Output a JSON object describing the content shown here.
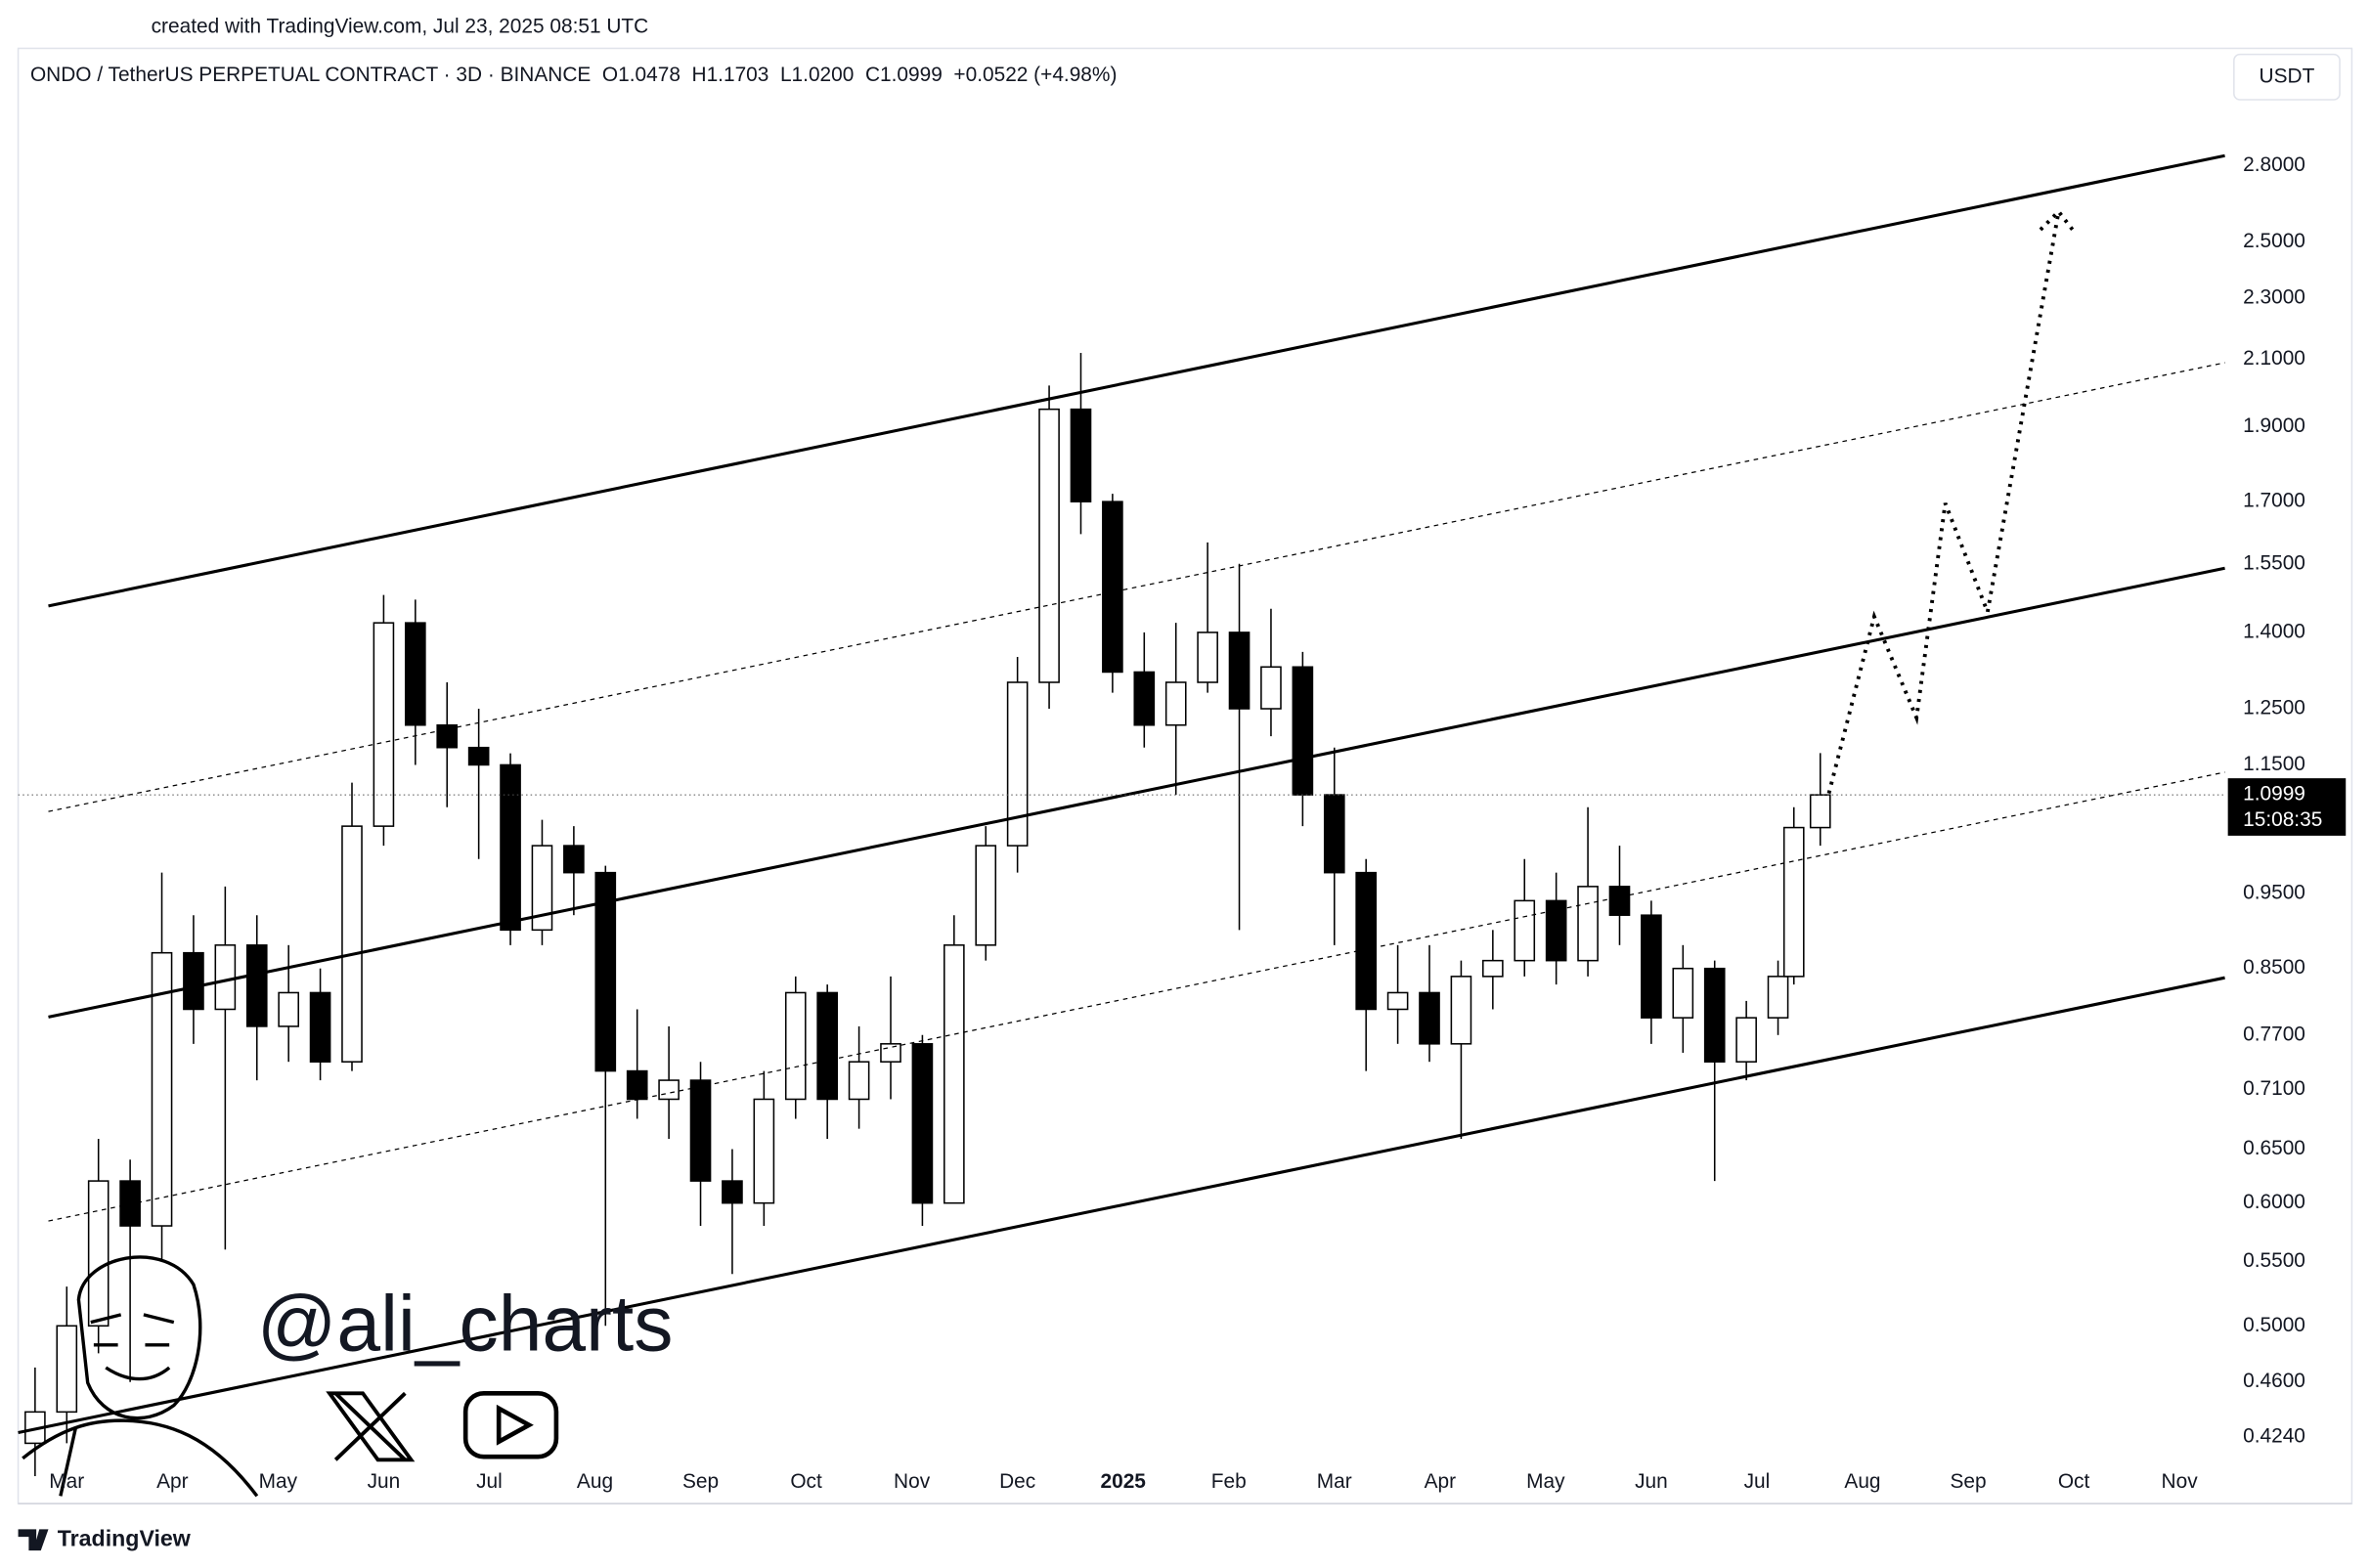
{
  "page": {
    "created": "created with TradingView.com, Jul 23, 2025 08:51 UTC",
    "currency": "USDT",
    "watermark": "@ali_charts",
    "brand": "TradingView"
  },
  "chart_data": {
    "type": "candlestick",
    "title": "ONDO / TetherUS PERPETUAL CONTRACT · 3D · BINANCE  O1.0478  H1.1703  L1.0200  C1.0999  +0.0522 (+4.98%)",
    "x": [
      -0.3,
      0,
      0.3,
      0.6,
      0.9,
      1.2,
      1.5,
      1.8,
      2.1,
      2.4,
      2.7,
      3.0,
      3.3,
      3.6,
      3.9,
      4.2,
      4.5,
      4.8,
      5.1,
      5.4,
      5.7,
      6.0,
      6.3,
      6.6,
      6.9,
      7.2,
      7.5,
      7.8,
      8.1,
      8.4,
      8.7,
      9.0,
      9.3,
      9.6,
      9.9,
      10.2,
      10.5,
      10.8,
      11.1,
      11.4,
      11.7,
      12.0,
      12.3,
      12.6,
      12.9,
      13.2,
      13.5,
      13.8,
      14.1,
      14.4,
      14.7,
      15.0,
      15.3,
      15.6,
      15.9,
      16.2,
      16.35,
      16.6
    ],
    "open": [
      0.42,
      0.44,
      0.5,
      0.62,
      0.58,
      0.87,
      0.8,
      0.88,
      0.78,
      0.82,
      0.74,
      1.05,
      1.42,
      1.22,
      1.18,
      1.15,
      0.9,
      1.02,
      0.98,
      0.73,
      0.7,
      0.72,
      0.62,
      0.6,
      0.7,
      0.82,
      0.7,
      0.74,
      0.76,
      0.6,
      0.88,
      1.02,
      1.3,
      1.95,
      1.7,
      1.32,
      1.22,
      1.3,
      1.4,
      1.25,
      1.33,
      1.1,
      0.98,
      0.8,
      0.82,
      0.76,
      0.84,
      0.86,
      0.94,
      0.86,
      0.96,
      0.92,
      0.79,
      0.85,
      0.74,
      0.79,
      0.84,
      1.0478
    ],
    "high": [
      0.47,
      0.53,
      0.66,
      0.64,
      0.98,
      0.92,
      0.96,
      0.92,
      0.88,
      0.85,
      1.12,
      1.48,
      1.47,
      1.3,
      1.25,
      1.17,
      1.06,
      1.05,
      0.99,
      0.8,
      0.78,
      0.74,
      0.65,
      0.73,
      0.84,
      0.83,
      0.78,
      0.84,
      0.77,
      0.92,
      1.05,
      1.35,
      2.02,
      2.12,
      1.72,
      1.4,
      1.42,
      1.6,
      1.55,
      1.45,
      1.36,
      1.18,
      1.0,
      0.88,
      0.88,
      0.86,
      0.9,
      1.0,
      0.98,
      1.08,
      1.02,
      0.94,
      0.88,
      0.86,
      0.81,
      0.86,
      1.08,
      1.1703
    ],
    "low": [
      0.4,
      0.42,
      0.48,
      0.46,
      0.55,
      0.76,
      0.56,
      0.72,
      0.74,
      0.72,
      0.73,
      1.02,
      1.15,
      1.08,
      1.0,
      0.88,
      0.88,
      0.92,
      0.5,
      0.68,
      0.66,
      0.58,
      0.54,
      0.58,
      0.68,
      0.66,
      0.67,
      0.7,
      0.58,
      0.6,
      0.86,
      0.98,
      1.25,
      1.62,
      1.28,
      1.18,
      1.1,
      1.28,
      0.9,
      1.2,
      1.05,
      0.88,
      0.73,
      0.76,
      0.74,
      0.66,
      0.8,
      0.84,
      0.83,
      0.84,
      0.88,
      0.76,
      0.75,
      0.62,
      0.72,
      0.77,
      0.83,
      1.02
    ],
    "close": [
      0.44,
      0.5,
      0.62,
      0.58,
      0.87,
      0.8,
      0.88,
      0.78,
      0.82,
      0.74,
      1.05,
      1.42,
      1.22,
      1.18,
      1.15,
      0.9,
      1.02,
      0.98,
      0.73,
      0.7,
      0.72,
      0.62,
      0.6,
      0.7,
      0.82,
      0.7,
      0.74,
      0.76,
      0.6,
      0.88,
      1.02,
      1.3,
      1.95,
      1.7,
      1.32,
      1.22,
      1.3,
      1.4,
      1.25,
      1.33,
      1.1,
      0.98,
      0.8,
      0.82,
      0.76,
      0.84,
      0.86,
      0.94,
      0.86,
      0.96,
      0.92,
      0.79,
      0.85,
      0.74,
      0.79,
      0.84,
      1.0478,
      1.0999
    ],
    "last_price_label": "1.0999",
    "countdown": "15:08:35",
    "up_color": "#ffffff",
    "down_color": "#000000",
    "outline_color": "#000000",
    "log_scale": true,
    "grid": false,
    "ylim": [
      0.384,
      3.31
    ],
    "yticks": [
      {
        "value": 0.424,
        "label": "0.4240"
      },
      {
        "value": 0.46,
        "label": "0.4600"
      },
      {
        "value": 0.5,
        "label": "0.5000"
      },
      {
        "value": 0.55,
        "label": "0.5500"
      },
      {
        "value": 0.6,
        "label": "0.6000"
      },
      {
        "value": 0.65,
        "label": "0.6500"
      },
      {
        "value": 0.71,
        "label": "0.7100"
      },
      {
        "value": 0.77,
        "label": "0.7700"
      },
      {
        "value": 0.85,
        "label": "0.8500"
      },
      {
        "value": 0.95,
        "label": "0.9500"
      },
      {
        "value": 1.15,
        "label": "1.1500"
      },
      {
        "value": 1.25,
        "label": "1.2500"
      },
      {
        "value": 1.4,
        "label": "1.4000"
      },
      {
        "value": 1.55,
        "label": "1.5500"
      },
      {
        "value": 1.7,
        "label": "1.7000"
      },
      {
        "value": 1.9,
        "label": "1.9000"
      },
      {
        "value": 2.1,
        "label": "2.1000"
      },
      {
        "value": 2.3,
        "label": "2.3000"
      },
      {
        "value": 2.5,
        "label": "2.5000"
      },
      {
        "value": 2.8,
        "label": "2.8000"
      }
    ],
    "xlim": [
      -0.46,
      20.43
    ],
    "xticks": [
      {
        "value": 0,
        "label": "Mar"
      },
      {
        "value": 1,
        "label": "Apr"
      },
      {
        "value": 2,
        "label": "May"
      },
      {
        "value": 3,
        "label": "Jun"
      },
      {
        "value": 4,
        "label": "Jul"
      },
      {
        "value": 5,
        "label": "Aug"
      },
      {
        "value": 6,
        "label": "Sep"
      },
      {
        "value": 7,
        "label": "Oct"
      },
      {
        "value": 8,
        "label": "Nov"
      },
      {
        "value": 9,
        "label": "Dec"
      },
      {
        "value": 10,
        "label": "2025"
      },
      {
        "value": 11,
        "label": "Feb"
      },
      {
        "value": 12,
        "label": "Mar"
      },
      {
        "value": 13,
        "label": "Apr"
      },
      {
        "value": 14,
        "label": "May"
      },
      {
        "value": 15,
        "label": "Jun"
      },
      {
        "value": 16,
        "label": "Jul"
      },
      {
        "value": 17,
        "label": "Aug"
      },
      {
        "value": 18,
        "label": "Sep"
      },
      {
        "value": 19,
        "label": "Oct"
      },
      {
        "value": 20,
        "label": "Nov"
      }
    ]
  }
}
